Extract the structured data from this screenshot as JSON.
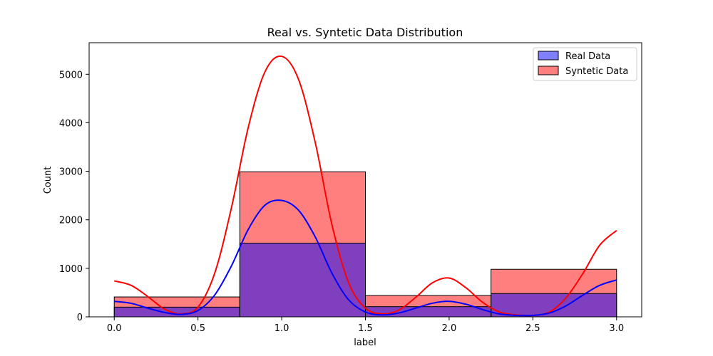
{
  "chart_data": {
    "type": "bar",
    "title": "Real vs. Syntetic Data Distribution",
    "xlabel": "label",
    "ylabel": "Count",
    "xlim": [
      -0.15,
      3.15
    ],
    "ylim": [
      0,
      5650
    ],
    "xticks": [
      "0.0",
      "0.5",
      "1.0",
      "1.5",
      "2.0",
      "2.5",
      "3.0"
    ],
    "yticks": [
      "0",
      "1000",
      "2000",
      "3000",
      "4000",
      "5000"
    ],
    "legend_position": "top-right",
    "grid": false,
    "bins": [
      [
        0.0,
        0.75
      ],
      [
        0.75,
        1.5
      ],
      [
        1.5,
        2.25
      ],
      [
        2.25,
        3.0
      ]
    ],
    "series": [
      {
        "name": "Syntetic Data",
        "color": "#ff0000",
        "values": [
          410,
          2990,
          440,
          980
        ],
        "kde": {
          "x": [
            0.0,
            0.1,
            0.2,
            0.3,
            0.4,
            0.5,
            0.6,
            0.7,
            0.8,
            0.9,
            1.0,
            1.1,
            1.2,
            1.3,
            1.4,
            1.5,
            1.6,
            1.7,
            1.8,
            1.9,
            2.0,
            2.1,
            2.2,
            2.3,
            2.4,
            2.5,
            2.6,
            2.7,
            2.8,
            2.9,
            3.0
          ],
          "y": [
            740,
            650,
            420,
            160,
            60,
            200,
            900,
            2250,
            3900,
            5050,
            5370,
            4900,
            3600,
            1900,
            700,
            180,
            60,
            140,
            400,
            700,
            800,
            600,
            300,
            100,
            40,
            30,
            100,
            400,
            900,
            1480,
            1780
          ]
        }
      },
      {
        "name": "Real Data",
        "color": "#0000ff",
        "values": [
          200,
          1520,
          210,
          480
        ],
        "kde": {
          "x": [
            0.0,
            0.1,
            0.2,
            0.3,
            0.4,
            0.5,
            0.6,
            0.7,
            0.8,
            0.9,
            1.0,
            1.1,
            1.2,
            1.3,
            1.4,
            1.5,
            1.6,
            1.7,
            1.8,
            1.9,
            2.0,
            2.1,
            2.2,
            2.3,
            2.4,
            2.5,
            2.6,
            2.7,
            2.8,
            2.9,
            3.0
          ],
          "y": [
            320,
            280,
            180,
            90,
            50,
            130,
            450,
            1050,
            1800,
            2300,
            2400,
            2200,
            1650,
            900,
            350,
            100,
            40,
            80,
            180,
            280,
            320,
            260,
            150,
            60,
            30,
            30,
            80,
            230,
            450,
            650,
            760
          ]
        }
      }
    ],
    "legend": [
      {
        "label": "Real Data",
        "face": "#7f7fff",
        "edge": "#000000"
      },
      {
        "label": "Syntetic Data",
        "face": "#ff7f7f",
        "edge": "#000000"
      }
    ]
  }
}
